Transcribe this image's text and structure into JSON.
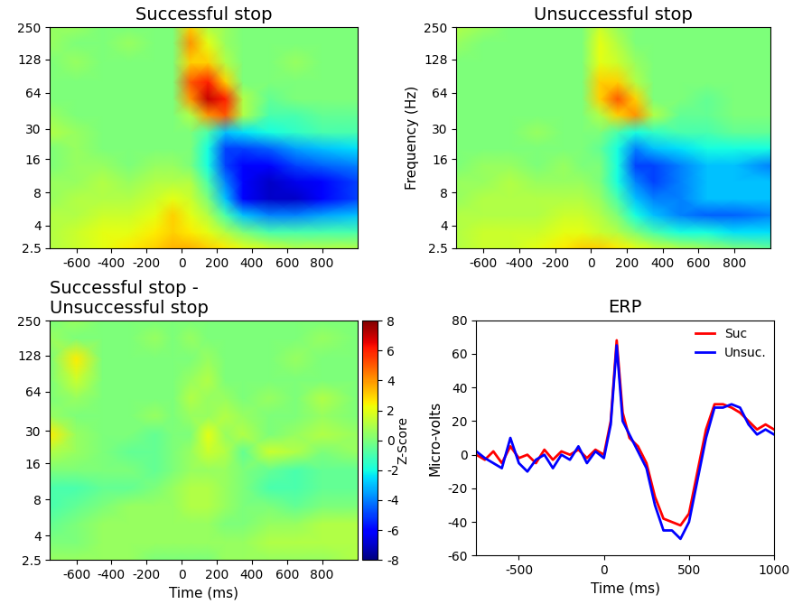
{
  "chart_data": [
    {
      "type": "heatmap",
      "title": "Successful stop",
      "x": [
        -750,
        -600,
        -450,
        -300,
        -150,
        -50,
        50,
        150,
        250,
        350,
        500,
        650,
        800,
        1000
      ],
      "y": [
        2.5,
        3.5,
        5,
        7,
        10,
        14,
        20,
        28,
        40,
        56,
        80,
        120,
        180,
        250
      ],
      "cells": [
        [
          1,
          1.5,
          2,
          2.5,
          3,
          3.5,
          3.5,
          3,
          2.5,
          2,
          1.5,
          1,
          1,
          1
        ],
        [
          1,
          1.5,
          2,
          2,
          2.5,
          3,
          2.5,
          2,
          1,
          0,
          -1,
          -1,
          -1,
          -1
        ],
        [
          1,
          1,
          1.5,
          1.5,
          2,
          3,
          2,
          1,
          -1,
          -3,
          -4,
          -4,
          -3.5,
          -3
        ],
        [
          0.5,
          1,
          1,
          1,
          1.5,
          2,
          1.5,
          0,
          -3,
          -6,
          -7,
          -7,
          -6,
          -5
        ],
        [
          0.5,
          0.5,
          1,
          0.5,
          1,
          1,
          1,
          -1,
          -4,
          -6,
          -7,
          -6.5,
          -6,
          -5
        ],
        [
          0,
          0.5,
          0.5,
          0,
          0.5,
          0.5,
          0,
          -2,
          -5,
          -6,
          -6,
          -5,
          -4.5,
          -4
        ],
        [
          0,
          0.5,
          0,
          0,
          0,
          0,
          0,
          -2,
          -5,
          -5,
          -4.5,
          -3.5,
          -3,
          -2.5
        ],
        [
          1,
          0.5,
          0,
          0,
          0,
          0,
          0,
          -1,
          -3,
          -2.5,
          -2,
          -1.5,
          -1,
          -1
        ],
        [
          0.5,
          0,
          0,
          0,
          0,
          0,
          1,
          4,
          5,
          1,
          -1,
          -1,
          -0.5,
          -0.5
        ],
        [
          0,
          0,
          0,
          0,
          0,
          0,
          4,
          7,
          6,
          1,
          -0.5,
          0,
          0,
          0
        ],
        [
          0,
          0,
          0,
          0,
          0,
          0,
          5,
          6,
          3,
          0,
          0,
          0,
          0,
          0
        ],
        [
          0,
          0.5,
          0,
          0,
          0,
          0,
          3,
          3,
          1,
          0,
          0,
          0.5,
          0,
          0
        ],
        [
          0.5,
          0,
          0,
          0.5,
          0,
          0,
          4,
          2,
          0.5,
          0,
          0,
          0,
          0,
          0
        ],
        [
          0.5,
          0.5,
          0,
          0,
          0,
          0,
          3,
          1,
          0.5,
          0,
          0,
          0,
          0,
          0
        ]
      ],
      "xlim": [
        -750,
        1000
      ],
      "xticks": [
        -600,
        -400,
        -200,
        0,
        200,
        400,
        600,
        800
      ],
      "ylim": [
        2.5,
        250
      ],
      "yticks": [
        2.5,
        4,
        8,
        16,
        30,
        64,
        128,
        250
      ],
      "log": "y",
      "color_range": [
        -8,
        8
      ]
    },
    {
      "type": "heatmap",
      "title": "Unsuccessful stop",
      "y_label": "Frequency (Hz)",
      "x": [
        -750,
        -600,
        -450,
        -300,
        -150,
        -50,
        50,
        150,
        250,
        350,
        500,
        650,
        800,
        1000
      ],
      "y": [
        2.5,
        3.5,
        5,
        7,
        10,
        14,
        20,
        28,
        40,
        56,
        80,
        120,
        180,
        250
      ],
      "cells": [
        [
          1,
          1.5,
          1.5,
          2,
          2.5,
          3,
          3,
          2.5,
          2,
          1.5,
          1,
          0.5,
          0,
          -0.5
        ],
        [
          1,
          1.5,
          1.5,
          1.5,
          2,
          2,
          1.5,
          1,
          0,
          -1,
          -2,
          -2,
          -2.5,
          -2.5
        ],
        [
          1,
          1,
          1,
          1,
          1.5,
          1.5,
          1,
          0,
          -2,
          -3,
          -4,
          -4.5,
          -4.5,
          -4
        ],
        [
          0.5,
          1,
          1,
          1,
          1,
          1,
          0.5,
          -1,
          -3,
          -4,
          -4,
          -3,
          -3,
          -3
        ],
        [
          0.5,
          0.5,
          1,
          0.5,
          0.5,
          0.5,
          0,
          -2,
          -4,
          -5,
          -4,
          -3,
          -3,
          -3
        ],
        [
          0,
          0.5,
          0.5,
          0,
          0.5,
          0,
          0,
          -2,
          -5,
          -5,
          -4,
          -3,
          -3,
          -4
        ],
        [
          0,
          0,
          0,
          0,
          0,
          0,
          -0.5,
          -2,
          -4,
          -3,
          -2.5,
          -2,
          -2,
          -2
        ],
        [
          0,
          0,
          0,
          0.5,
          0,
          0,
          0,
          -1,
          -2,
          -1.5,
          -1,
          -1,
          -0.5,
          -0.5
        ],
        [
          0,
          0,
          0,
          0,
          0,
          0,
          1,
          3,
          4,
          1,
          -0.5,
          -0.5,
          0,
          0
        ],
        [
          0,
          0,
          0,
          0,
          0,
          0,
          3,
          5,
          3,
          0,
          0,
          -0.5,
          0,
          0
        ],
        [
          0,
          0,
          0,
          0,
          0,
          0,
          3,
          3,
          1,
          0,
          0,
          0,
          0,
          0
        ],
        [
          0,
          0,
          0,
          0,
          0,
          0,
          2,
          1.5,
          0.5,
          0,
          0,
          0,
          0,
          0
        ],
        [
          0.5,
          0,
          0,
          0,
          0,
          0,
          2,
          1,
          0,
          0,
          0,
          0,
          0,
          0
        ],
        [
          1,
          0.5,
          0,
          0,
          0,
          0,
          1.5,
          0.5,
          0,
          0,
          0,
          0,
          0,
          0
        ]
      ],
      "xlim": [
        -750,
        1000
      ],
      "xticks": [
        -600,
        -400,
        -200,
        0,
        200,
        400,
        600,
        800
      ],
      "ylim": [
        2.5,
        250
      ],
      "yticks": [
        2.5,
        4,
        8,
        16,
        30,
        64,
        128,
        250
      ],
      "log": "y",
      "color_range": [
        -8,
        8
      ]
    },
    {
      "type": "heatmap",
      "title": "Successful stop -\nUnsuccessful stop",
      "x_label": "Time (ms)",
      "x": [
        -750,
        -600,
        -450,
        -300,
        -150,
        -50,
        50,
        150,
        250,
        350,
        500,
        650,
        800,
        1000
      ],
      "y": [
        2.5,
        3.5,
        5,
        7,
        10,
        14,
        20,
        28,
        40,
        56,
        80,
        120,
        180,
        250
      ],
      "cells": [
        [
          0.5,
          0.5,
          0.5,
          0.5,
          0,
          0,
          0,
          0,
          0.5,
          0.5,
          0.5,
          0.5,
          0.5,
          1
        ],
        [
          0,
          0,
          0.5,
          0.5,
          0.5,
          0.5,
          0.5,
          0.5,
          0.5,
          0.5,
          1,
          1,
          1,
          1
        ],
        [
          -0.5,
          0,
          0.5,
          0.5,
          0.5,
          0.5,
          0.5,
          0.5,
          0,
          0,
          0.5,
          0.5,
          1,
          1
        ],
        [
          -1,
          -0.5,
          0,
          0.5,
          0.5,
          0.5,
          1,
          1,
          0.5,
          0,
          0,
          -0.5,
          0,
          0
        ],
        [
          -1,
          -1,
          -0.5,
          -0.5,
          0,
          0.5,
          1,
          1,
          0.5,
          0,
          -1,
          -1,
          -0.5,
          -0.5
        ],
        [
          0,
          0,
          0,
          0,
          -0.5,
          0,
          0.5,
          0.5,
          0.5,
          0,
          -0.5,
          -1,
          -0.5,
          -0.5
        ],
        [
          1,
          0.5,
          0,
          -0.5,
          -0.5,
          0,
          0.5,
          1.5,
          1,
          -0.5,
          1.5,
          1,
          0,
          0.5
        ],
        [
          2.5,
          0.5,
          0,
          0,
          -0.5,
          0,
          0,
          2,
          0.5,
          1,
          0,
          0.5,
          1,
          0.5
        ],
        [
          0.5,
          0,
          0,
          0,
          0.5,
          0,
          0.5,
          0.5,
          1,
          0.5,
          0,
          0,
          0.5,
          0
        ],
        [
          0,
          0.5,
          0,
          0,
          0,
          0,
          1,
          0.5,
          0.5,
          0,
          0.5,
          0,
          1,
          0
        ],
        [
          0,
          1.5,
          0,
          0,
          0,
          0,
          0.5,
          1,
          0,
          0,
          0,
          0,
          0,
          0
        ],
        [
          0,
          2.5,
          0,
          0,
          0,
          0,
          0,
          0.5,
          0,
          0,
          0,
          0.5,
          0,
          0
        ],
        [
          0.5,
          0,
          0,
          0,
          0.5,
          0,
          0.5,
          0,
          0,
          0,
          0,
          0,
          0.5,
          0
        ],
        [
          0,
          0.5,
          0,
          0,
          0,
          0,
          0,
          0,
          0,
          0,
          0,
          0,
          0,
          0
        ]
      ],
      "xlim": [
        -750,
        1000
      ],
      "xticks": [
        -600,
        -400,
        -200,
        0,
        200,
        400,
        600,
        800
      ],
      "ylim": [
        2.5,
        250
      ],
      "yticks": [
        2.5,
        4,
        8,
        16,
        30,
        64,
        128,
        250
      ],
      "log": "y",
      "color_range": [
        -8,
        8
      ],
      "colorbar_label": "Z-Score",
      "colorbar_ticks": [
        -8,
        -6,
        -4,
        -2,
        0,
        2,
        4,
        6,
        8
      ]
    },
    {
      "type": "line",
      "title": "ERP",
      "x_label": "Time (ms)",
      "y_label": "Micro-volts",
      "x": [
        -750,
        -700,
        -650,
        -600,
        -550,
        -500,
        -450,
        -400,
        -350,
        -300,
        -250,
        -200,
        -150,
        -100,
        -50,
        0,
        40,
        75,
        110,
        150,
        200,
        250,
        300,
        350,
        400,
        450,
        500,
        550,
        600,
        650,
        700,
        750,
        800,
        850,
        900,
        950,
        1000
      ],
      "series": [
        {
          "name": "Suc",
          "color": "#ff0000",
          "values": [
            0,
            -3,
            2,
            -5,
            5,
            -2,
            0,
            -5,
            3,
            -3,
            2,
            0,
            3,
            -2,
            3,
            0,
            20,
            68,
            25,
            10,
            5,
            -5,
            -25,
            -38,
            -40,
            -42,
            -35,
            -10,
            15,
            30,
            30,
            28,
            25,
            20,
            15,
            18,
            15
          ]
        },
        {
          "name": "Unsuc.",
          "color": "#0000ff",
          "values": [
            2,
            -2,
            -5,
            -8,
            10,
            -5,
            -10,
            -3,
            0,
            -8,
            0,
            -3,
            5,
            -5,
            2,
            -2,
            18,
            65,
            20,
            12,
            2,
            -8,
            -30,
            -45,
            -45,
            -50,
            -40,
            -15,
            10,
            28,
            28,
            30,
            28,
            18,
            12,
            15,
            12
          ]
        }
      ],
      "xlim": [
        -750,
        1000
      ],
      "xticks": [
        -500,
        0,
        500,
        1000
      ],
      "ylim": [
        -60,
        80
      ],
      "yticks": [
        -60,
        -40,
        -20,
        0,
        20,
        40,
        60,
        80
      ],
      "legend": "upper right"
    }
  ]
}
